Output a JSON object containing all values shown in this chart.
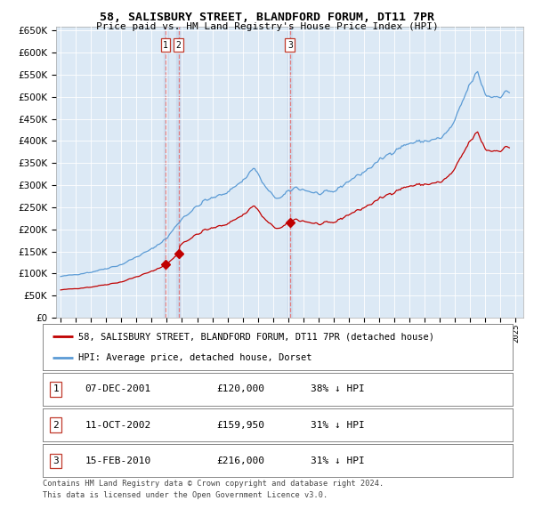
{
  "title": "58, SALISBURY STREET, BLANDFORD FORUM, DT11 7PR",
  "subtitle": "Price paid vs. HM Land Registry's House Price Index (HPI)",
  "legend_line1": "58, SALISBURY STREET, BLANDFORD FORUM, DT11 7PR (detached house)",
  "legend_line2": "HPI: Average price, detached house, Dorset",
  "footer1": "Contains HM Land Registry data © Crown copyright and database right 2024.",
  "footer2": "This data is licensed under the Open Government Licence v3.0.",
  "transactions": [
    {
      "num": 1,
      "date": "07-DEC-2001",
      "price": "£120,000",
      "hpi": "38% ↓ HPI",
      "year": 2001.92,
      "price_val": 120000
    },
    {
      "num": 2,
      "date": "11-OCT-2002",
      "price": "£159,950",
      "hpi": "31% ↓ HPI",
      "year": 2002.78,
      "price_val": 159950
    },
    {
      "num": 3,
      "date": "15-FEB-2010",
      "price": "£216,000",
      "hpi": "31% ↓ HPI",
      "year": 2010.12,
      "price_val": 216000
    }
  ],
  "hpi_color": "#5b9bd5",
  "property_color": "#c00000",
  "vline_color": "#e57373",
  "vfill_color": "#dce9f5",
  "background_chart": "#dce9f5",
  "ylim": [
    0,
    660000
  ],
  "yticks": [
    0,
    50000,
    100000,
    150000,
    200000,
    250000,
    300000,
    350000,
    400000,
    450000,
    500000,
    550000,
    600000,
    650000
  ],
  "xlim_start": 1994.7,
  "xlim_end": 2025.5,
  "xticks": [
    1995,
    1996,
    1997,
    1998,
    1999,
    2000,
    2001,
    2002,
    2003,
    2004,
    2005,
    2006,
    2007,
    2008,
    2009,
    2010,
    2011,
    2012,
    2013,
    2014,
    2015,
    2016,
    2017,
    2018,
    2019,
    2020,
    2021,
    2022,
    2023,
    2024,
    2025
  ]
}
